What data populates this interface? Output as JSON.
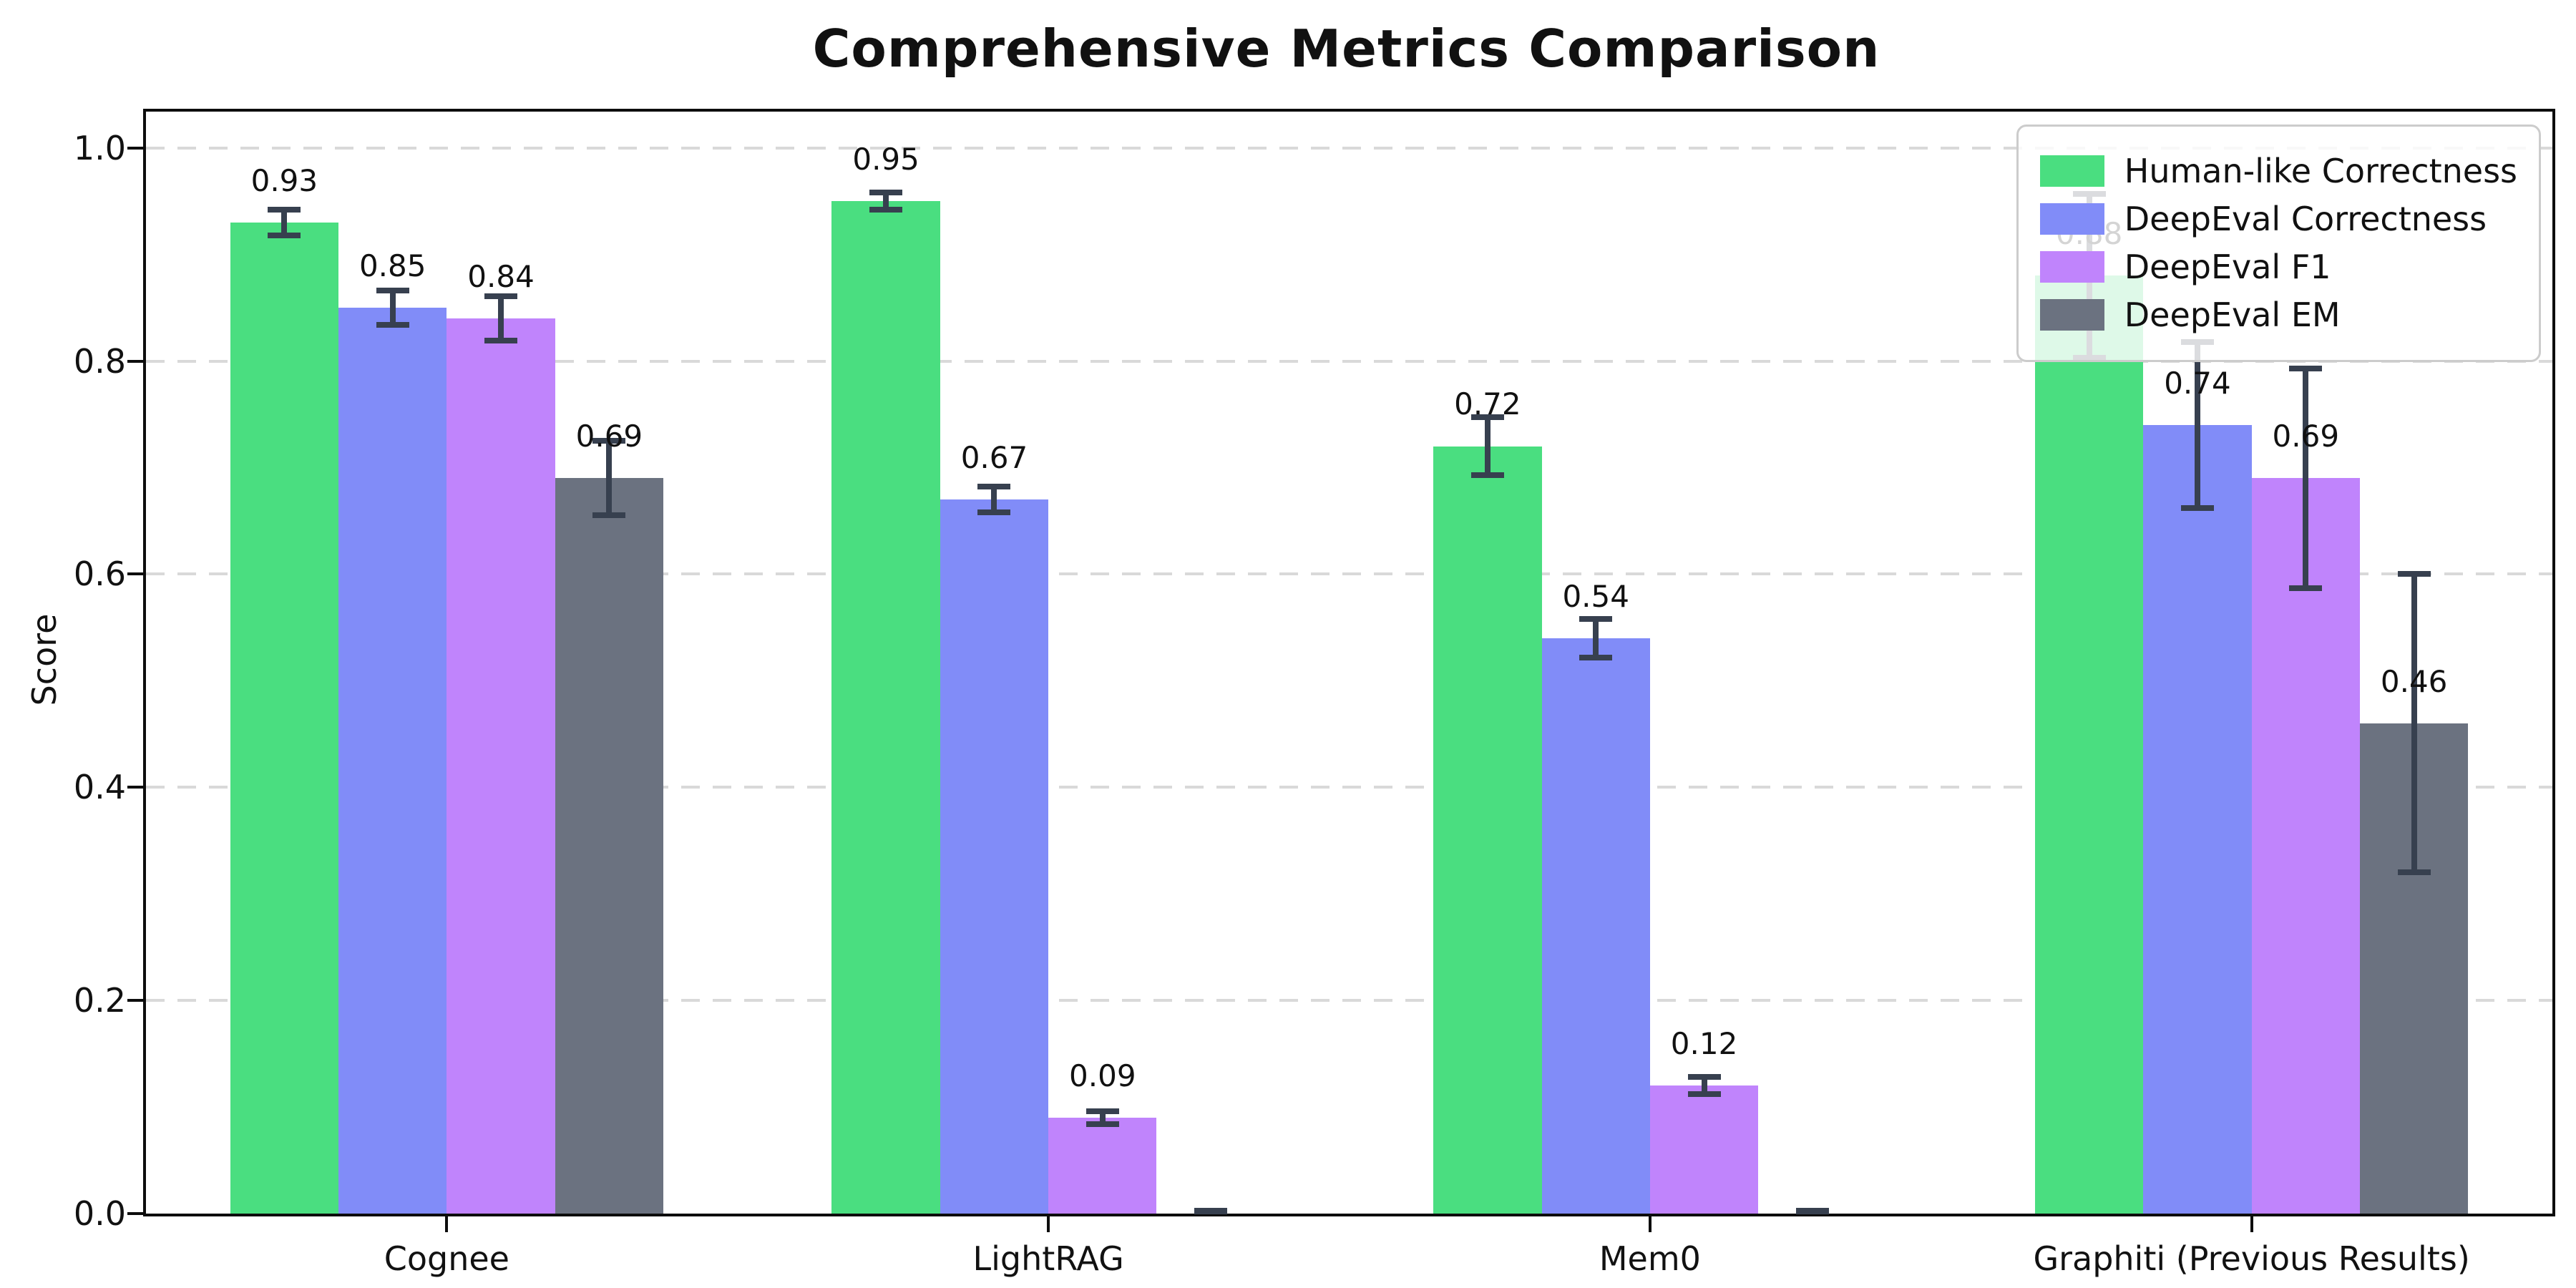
{
  "title": "Comprehensive Metrics Comparison",
  "colors": {
    "spine": "#0d0d0d",
    "grid": "#d9d9d9",
    "error_bar": "#37404f",
    "legend_border": "#cccccc",
    "background": "#ffffff"
  },
  "chart_data": {
    "type": "bar",
    "title": "Comprehensive Metrics Comparison",
    "xlabel": "",
    "ylabel": "Score",
    "ylim": [
      0,
      1.034
    ],
    "yticks": [
      "0.0",
      "0.2",
      "0.4",
      "0.6",
      "0.8",
      "1.0"
    ],
    "grid": "horizontal dashed",
    "legend_position": "upper right",
    "categories": [
      "Cognee",
      "LightRAG",
      "Mem0",
      "Graphiti (Previous Results)"
    ],
    "series": [
      {
        "name": "Human-like Correctness",
        "color": "#4ade80",
        "values": [
          0.93,
          0.95,
          0.72,
          0.88
        ],
        "errors": [
          0.012,
          0.008,
          0.027,
          0.077
        ],
        "labels": [
          "0.93",
          "0.95",
          "0.72",
          "0.88"
        ]
      },
      {
        "name": "DeepEval Correctness",
        "color": "#818cf8",
        "values": [
          0.85,
          0.67,
          0.54,
          0.74
        ],
        "errors": [
          0.016,
          0.012,
          0.018,
          0.078
        ],
        "labels": [
          "0.85",
          "0.67",
          "0.54",
          "0.74"
        ]
      },
      {
        "name": "DeepEval F1",
        "color": "#c084fc",
        "values": [
          0.84,
          0.09,
          0.12,
          0.69
        ],
        "errors": [
          0.021,
          0.006,
          0.008,
          0.103
        ],
        "labels": [
          "0.84",
          "0.09",
          "0.12",
          "0.69"
        ]
      },
      {
        "name": "DeepEval EM",
        "color": "#6b7280",
        "values": [
          0.69,
          0.0,
          0.0,
          0.46
        ],
        "errors": [
          0.035,
          0.002,
          0.002,
          0.14
        ],
        "labels": [
          "0.69",
          "",
          "",
          "0.46"
        ]
      }
    ],
    "bar_width_units": 0.18,
    "x_range_units": [
      -0.5,
      3.5
    ]
  }
}
